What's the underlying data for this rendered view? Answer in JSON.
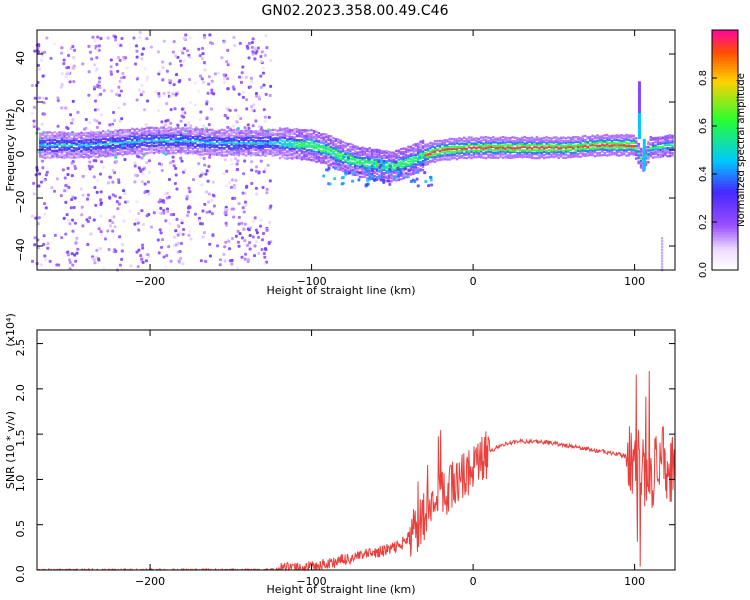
{
  "title": "GN02.2023.358.00.49.C46",
  "chart_data": [
    {
      "type": "heatmap",
      "xlabel": "Height of straight line (km)",
      "ylabel": "Frequency (Hz)",
      "xlim": [
        -270,
        125
      ],
      "ylim": [
        -50,
        50
      ],
      "xticks": [
        -200,
        -100,
        0,
        100
      ],
      "yticks": [
        -40,
        -20,
        0,
        20,
        40
      ],
      "colorbar": {
        "label": "Normalized spectral amplitude",
        "range": [
          0,
          1
        ],
        "ticks": [
          0.0,
          0.2,
          0.4,
          0.6,
          0.8
        ],
        "tick_labels": [
          "0.0",
          "0.2",
          "0.4",
          "0.6",
          "0.8"
        ]
      },
      "main_band_ridge": [
        {
          "x": -265,
          "y": 2
        },
        {
          "x": -240,
          "y": 2
        },
        {
          "x": -220,
          "y": 3
        },
        {
          "x": -200,
          "y": 4
        },
        {
          "x": -180,
          "y": 4
        },
        {
          "x": -160,
          "y": 3
        },
        {
          "x": -140,
          "y": 3
        },
        {
          "x": -120,
          "y": 3
        },
        {
          "x": -100,
          "y": 2
        },
        {
          "x": -90,
          "y": 0
        },
        {
          "x": -80,
          "y": -3
        },
        {
          "x": -70,
          "y": -5
        },
        {
          "x": -60,
          "y": -6
        },
        {
          "x": -50,
          "y": -7
        },
        {
          "x": -40,
          "y": -5
        },
        {
          "x": -30,
          "y": -2
        },
        {
          "x": -20,
          "y": 0
        },
        {
          "x": 0,
          "y": 1
        },
        {
          "x": 20,
          "y": 1
        },
        {
          "x": 40,
          "y": 1
        },
        {
          "x": 60,
          "y": 1
        },
        {
          "x": 80,
          "y": 2
        },
        {
          "x": 100,
          "y": 2
        },
        {
          "x": 105,
          "y": -5
        },
        {
          "x": 110,
          "y": 1
        },
        {
          "x": 125,
          "y": 2
        }
      ],
      "scatter_region_x": [
        -270,
        -125
      ],
      "high_amplitude_x": [
        -30,
        100
      ]
    },
    {
      "type": "line",
      "xlabel": "Height of straight line (km)",
      "ylabel": "SNR (10 * v/v)",
      "scale_label": "(x10⁴)",
      "xlim": [
        -270,
        125
      ],
      "ylim": [
        0,
        2.65
      ],
      "xticks": [
        -200,
        -100,
        0,
        100
      ],
      "yticks": [
        0.0,
        0.5,
        1.0,
        1.5,
        2.0,
        2.5
      ],
      "ytick_labels": [
        "0.0",
        "0.5",
        "1.0",
        "1.5",
        "2.0",
        "2.5"
      ],
      "series": [
        {
          "color": "#e8413d",
          "x": [
            -270,
            -250,
            -230,
            -210,
            -190,
            -170,
            -150,
            -130,
            -120,
            -110,
            -100,
            -95,
            -90,
            -85,
            -80,
            -75,
            -70,
            -65,
            -60,
            -55,
            -50,
            -45,
            -40,
            -35,
            -30,
            -25,
            -20,
            -15,
            -10,
            -5,
            0,
            5,
            10,
            15,
            20,
            25,
            30,
            35,
            40,
            45,
            50,
            55,
            60,
            65,
            70,
            75,
            80,
            85,
            90,
            95,
            100,
            103,
            106,
            109,
            112,
            115,
            118,
            121,
            125
          ],
          "y": [
            0.0,
            0.0,
            0.0,
            0.0,
            0.0,
            0.0,
            0.0,
            0.0,
            0.01,
            0.02,
            0.03,
            0.05,
            0.07,
            0.09,
            0.11,
            0.13,
            0.15,
            0.17,
            0.19,
            0.21,
            0.24,
            0.28,
            0.35,
            0.45,
            0.6,
            0.72,
            0.82,
            0.9,
            0.98,
            1.05,
            1.12,
            1.2,
            1.3,
            1.36,
            1.39,
            1.41,
            1.42,
            1.42,
            1.42,
            1.41,
            1.4,
            1.38,
            1.37,
            1.35,
            1.34,
            1.32,
            1.31,
            1.29,
            1.28,
            1.25,
            1.2,
            1.15,
            1.1,
            1.05,
            1.1,
            1.15,
            1.2,
            1.15,
            1.12
          ]
        }
      ]
    }
  ]
}
